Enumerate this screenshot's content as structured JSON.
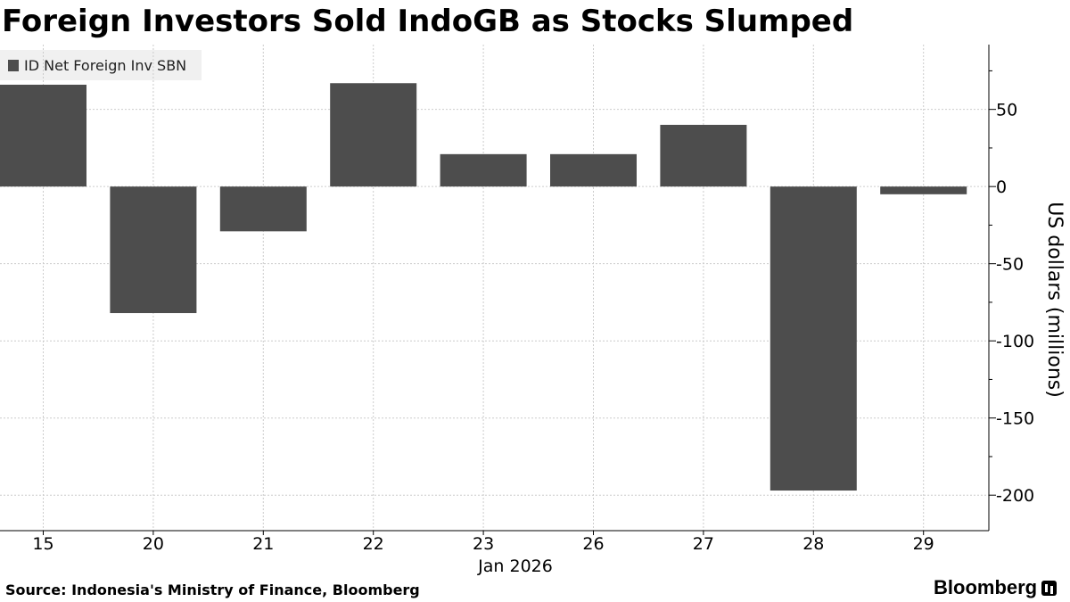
{
  "title": "Foreign Investors Sold IndoGB as Stocks Slumped",
  "source": "Source: Indonesia's Ministry of Finance, Bloomberg",
  "brand": "Bloomberg",
  "colors": {
    "bar": "#4d4d4d",
    "grid": "#cccccc",
    "axis": "#000000",
    "legend_bg": "#f0f0f0"
  },
  "chart_data": {
    "type": "bar",
    "title": "Foreign Investors Sold IndoGB as Stocks Slumped",
    "legend": [
      "ID Net Foreign Inv SBN"
    ],
    "legend_position": "top-left",
    "categories": [
      "15",
      "20",
      "21",
      "22",
      "23",
      "26",
      "27",
      "28",
      "29"
    ],
    "series": [
      {
        "name": "ID Net Foreign Inv SBN",
        "values": [
          66,
          -82,
          -29,
          67,
          21,
          21,
          40,
          -197,
          -5
        ]
      }
    ],
    "xlabel": "Jan 2026",
    "ylabel": "US dollars (millions)",
    "yticks": [
      50,
      0,
      -50,
      -100,
      -150,
      -200
    ],
    "ylim": [
      -223,
      92
    ],
    "grid": true,
    "y_axis_side": "right"
  }
}
